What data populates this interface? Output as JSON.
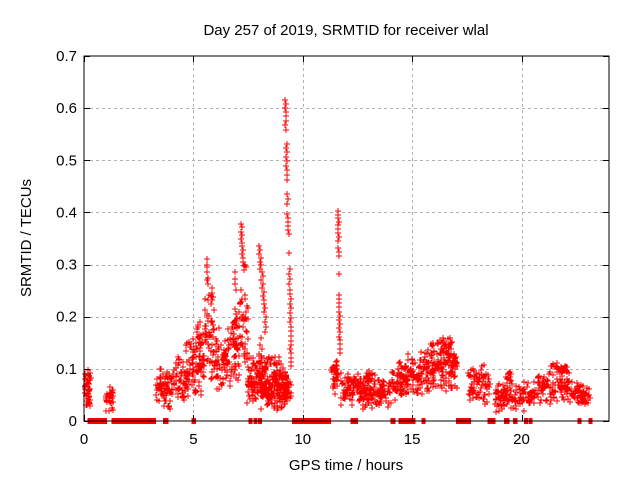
{
  "chart_data": {
    "type": "scatter",
    "title": "Day 257 of 2019, SRMTID for receiver wlal",
    "xlabel": "GPS time / hours",
    "ylabel": "SRMTID / TECUs",
    "x_range": [
      0,
      24
    ],
    "y_range": [
      0,
      0.7
    ],
    "x_ticks": [
      0,
      5,
      10,
      15,
      20
    ],
    "y_ticks": [
      0,
      0.1,
      0.2,
      0.3,
      0.4,
      0.5,
      0.6,
      0.7
    ],
    "grid": true,
    "legend": "none",
    "marker": {
      "shape": "plus",
      "size": 7,
      "color": "#ff0000"
    },
    "grid_color": "#b0b0b0",
    "frame_color": "#000000",
    "background_color": "#ffffff",
    "zero_segments_format": "[start_hour, end_hour] runs of points at SRMTID = 0 drawn on the x-axis",
    "zero_segments": [
      [
        0.15,
        1.05
      ],
      [
        1.25,
        3.3
      ],
      [
        3.6,
        3.87
      ],
      [
        4.92,
        5.12
      ],
      [
        7.52,
        7.68
      ],
      [
        7.75,
        7.88
      ],
      [
        7.95,
        8.06
      ],
      [
        9.5,
        11.3
      ],
      [
        12.18,
        12.52
      ],
      [
        14.0,
        14.25
      ],
      [
        14.38,
        14.46
      ],
      [
        14.52,
        14.58
      ],
      [
        14.63,
        14.68
      ],
      [
        14.72,
        14.79
      ],
      [
        14.84,
        14.9
      ],
      [
        14.96,
        15.03
      ],
      [
        15.42,
        15.54
      ],
      [
        17.0,
        17.68
      ],
      [
        18.45,
        18.82
      ],
      [
        19.2,
        19.44
      ],
      [
        19.6,
        19.82
      ],
      [
        20.12,
        20.24
      ],
      [
        20.32,
        20.44
      ],
      [
        22.55,
        22.7
      ],
      [
        23.07,
        23.22
      ]
    ],
    "clusters_format": "[x_start_hours, x_end_hours, y_min_TECUs, y_max_TECUs, point_count]",
    "clusters": [
      [
        0.02,
        0.32,
        0.02,
        0.1,
        45
      ],
      [
        0.95,
        1.35,
        0.015,
        0.07,
        35
      ],
      [
        3.3,
        4.0,
        0.02,
        0.105,
        70
      ],
      [
        4.0,
        4.65,
        0.03,
        0.125,
        55
      ],
      [
        4.65,
        5.5,
        0.04,
        0.165,
        90
      ],
      [
        5.1,
        5.5,
        0.13,
        0.2,
        14
      ],
      [
        5.5,
        5.95,
        0.07,
        0.26,
        55
      ],
      [
        5.95,
        6.7,
        0.05,
        0.19,
        80
      ],
      [
        6.7,
        7.1,
        0.06,
        0.245,
        50
      ],
      [
        7.1,
        7.5,
        0.08,
        0.285,
        40
      ],
      [
        7.45,
        8.0,
        0.03,
        0.13,
        60
      ],
      [
        8.0,
        8.35,
        0.05,
        0.16,
        35
      ],
      [
        8.05,
        9.25,
        0.02,
        0.105,
        170
      ],
      [
        8.3,
        9.0,
        0.09,
        0.135,
        20
      ],
      [
        9.1,
        9.5,
        0.03,
        0.1,
        40
      ],
      [
        11.3,
        11.62,
        0.05,
        0.13,
        35
      ],
      [
        11.7,
        12.6,
        0.03,
        0.1,
        70
      ],
      [
        12.6,
        14.05,
        0.022,
        0.085,
        130
      ],
      [
        12.9,
        13.3,
        0.07,
        0.108,
        18
      ],
      [
        14.05,
        14.65,
        0.03,
        0.12,
        55
      ],
      [
        14.65,
        15.55,
        0.04,
        0.135,
        80
      ],
      [
        15.55,
        17.05,
        0.05,
        0.16,
        150
      ],
      [
        16.1,
        16.85,
        0.125,
        0.168,
        25
      ],
      [
        17.55,
        18.55,
        0.025,
        0.115,
        75
      ],
      [
        18.8,
        20.65,
        0.015,
        0.08,
        120
      ],
      [
        19.3,
        19.6,
        0.06,
        0.098,
        12
      ],
      [
        20.7,
        22.35,
        0.03,
        0.095,
        95
      ],
      [
        21.3,
        22.15,
        0.085,
        0.115,
        30
      ],
      [
        22.35,
        23.15,
        0.025,
        0.075,
        60
      ]
    ],
    "feature_points_format": "[hour, TECUs] individually read spike points",
    "feature_points": [
      [
        5.62,
        0.31
      ],
      [
        5.6,
        0.3
      ],
      [
        5.64,
        0.295
      ],
      [
        5.63,
        0.285
      ],
      [
        5.66,
        0.275
      ],
      [
        5.61,
        0.27
      ],
      [
        5.68,
        0.262
      ],
      [
        5.83,
        0.255
      ],
      [
        5.85,
        0.245
      ],
      [
        5.82,
        0.24
      ],
      [
        5.86,
        0.232
      ],
      [
        5.8,
        0.225
      ],
      [
        6.9,
        0.285
      ],
      [
        6.92,
        0.272
      ],
      [
        6.88,
        0.262
      ],
      [
        6.95,
        0.252
      ],
      [
        7.16,
        0.378
      ],
      [
        7.2,
        0.372
      ],
      [
        7.18,
        0.363
      ],
      [
        7.22,
        0.356
      ],
      [
        7.17,
        0.35
      ],
      [
        7.24,
        0.342
      ],
      [
        7.21,
        0.335
      ],
      [
        7.26,
        0.328
      ],
      [
        7.23,
        0.32
      ],
      [
        7.28,
        0.312
      ],
      [
        7.25,
        0.305
      ],
      [
        7.3,
        0.298
      ],
      [
        7.33,
        0.29
      ],
      [
        7.36,
        0.3
      ],
      [
        7.4,
        0.295
      ],
      [
        8.0,
        0.335
      ],
      [
        8.04,
        0.327
      ],
      [
        8.01,
        0.32
      ],
      [
        8.07,
        0.312
      ],
      [
        8.03,
        0.305
      ],
      [
        8.1,
        0.3
      ],
      [
        8.06,
        0.292
      ],
      [
        8.12,
        0.285
      ],
      [
        8.16,
        0.278
      ],
      [
        8.1,
        0.27
      ],
      [
        8.2,
        0.262
      ],
      [
        8.15,
        0.255
      ],
      [
        8.22,
        0.247
      ],
      [
        8.18,
        0.24
      ],
      [
        8.25,
        0.232
      ],
      [
        8.21,
        0.225
      ],
      [
        8.27,
        0.217
      ],
      [
        8.24,
        0.21
      ],
      [
        8.3,
        0.2
      ],
      [
        8.27,
        0.19
      ],
      [
        8.32,
        0.18
      ],
      [
        8.29,
        0.17
      ],
      [
        9.2,
        0.615
      ],
      [
        9.23,
        0.608
      ],
      [
        9.21,
        0.6
      ],
      [
        9.24,
        0.592
      ],
      [
        9.22,
        0.584
      ],
      [
        9.25,
        0.576
      ],
      [
        9.21,
        0.568
      ],
      [
        9.23,
        0.558
      ],
      [
        9.26,
        0.532
      ],
      [
        9.23,
        0.524
      ],
      [
        9.27,
        0.515
      ],
      [
        9.24,
        0.507
      ],
      [
        9.28,
        0.499
      ],
      [
        9.25,
        0.49
      ],
      [
        9.29,
        0.481
      ],
      [
        9.26,
        0.472
      ],
      [
        9.3,
        0.463
      ],
      [
        9.28,
        0.435
      ],
      [
        9.31,
        0.426
      ],
      [
        9.29,
        0.417
      ],
      [
        9.3,
        0.397
      ],
      [
        9.33,
        0.39
      ],
      [
        9.31,
        0.382
      ],
      [
        9.34,
        0.374
      ],
      [
        9.32,
        0.366
      ],
      [
        9.35,
        0.358
      ],
      [
        9.38,
        0.322
      ],
      [
        9.4,
        0.292
      ],
      [
        9.37,
        0.282
      ],
      [
        9.42,
        0.272
      ],
      [
        9.39,
        0.262
      ],
      [
        9.43,
        0.252
      ],
      [
        9.41,
        0.243
      ],
      [
        9.44,
        0.234
      ],
      [
        9.4,
        0.225
      ],
      [
        9.45,
        0.216
      ],
      [
        9.42,
        0.207
      ],
      [
        9.46,
        0.198
      ],
      [
        9.43,
        0.19
      ],
      [
        9.47,
        0.181
      ],
      [
        9.44,
        0.172
      ],
      [
        9.47,
        0.163
      ],
      [
        9.45,
        0.154
      ],
      [
        9.48,
        0.146
      ],
      [
        9.42,
        0.138
      ],
      [
        9.46,
        0.13
      ],
      [
        9.44,
        0.121
      ],
      [
        9.47,
        0.113
      ],
      [
        9.45,
        0.105
      ],
      [
        11.6,
        0.403
      ],
      [
        11.63,
        0.396
      ],
      [
        11.61,
        0.389
      ],
      [
        11.64,
        0.382
      ],
      [
        11.62,
        0.375
      ],
      [
        11.6,
        0.368
      ],
      [
        11.63,
        0.361
      ],
      [
        11.65,
        0.352
      ],
      [
        11.62,
        0.345
      ],
      [
        11.63,
        0.331
      ],
      [
        11.65,
        0.324
      ],
      [
        11.64,
        0.317
      ],
      [
        11.66,
        0.281
      ],
      [
        11.64,
        0.242
      ],
      [
        11.66,
        0.234
      ],
      [
        11.65,
        0.226
      ],
      [
        11.67,
        0.218
      ],
      [
        11.65,
        0.21
      ],
      [
        11.68,
        0.202
      ],
      [
        11.66,
        0.194
      ],
      [
        11.68,
        0.186
      ],
      [
        11.66,
        0.178
      ],
      [
        11.69,
        0.17
      ],
      [
        11.67,
        0.162
      ],
      [
        11.7,
        0.155
      ],
      [
        11.68,
        0.147
      ],
      [
        11.7,
        0.139
      ],
      [
        11.69,
        0.131
      ]
    ]
  }
}
